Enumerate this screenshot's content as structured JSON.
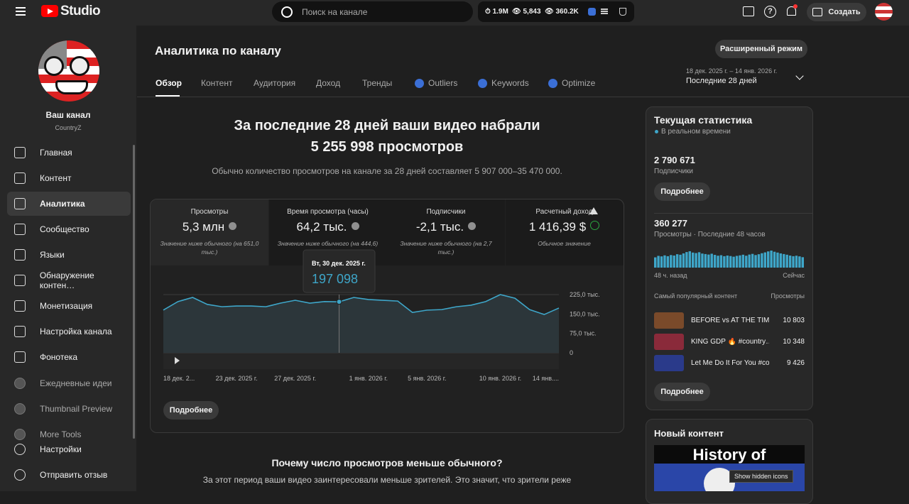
{
  "topbar": {
    "logo": "Studio",
    "search_placeholder": "Поиск на канале",
    "stats": [
      "1.9M",
      "5,843",
      "360.2K"
    ],
    "create": "Создать"
  },
  "sidebar": {
    "channel_name": "Ваш канал",
    "channel_handle": "CountryZ",
    "nav": [
      "Главная",
      "Контент",
      "Аналитика",
      "Сообщество",
      "Языки",
      "Обнаружение контен…",
      "Монетизация",
      "Настройка канала",
      "Фонотека",
      "Ежедневные идеи",
      "Thumbnail Preview",
      "More Tools"
    ],
    "bottom": [
      "Настройки",
      "Отправить отзыв"
    ]
  },
  "header": {
    "title": "Аналитика по каналу",
    "tabs": [
      "Обзор",
      "Контент",
      "Аудитория",
      "Доход",
      "Тренды",
      "Outliers",
      "Keywords",
      "Optimize"
    ],
    "advanced": "Расширенный режим",
    "date_range": "18 дек. 2025 г. – 14 янв. 2026 г.",
    "period": "Последние 28 дней"
  },
  "summary": {
    "headline": [
      "За последние 28 дней ваши видео набрали",
      "5 255 998 просмотров"
    ],
    "subtitle": "Обычно количество просмотров на канале за 28 дней составляет 5 907 000–35 470 000."
  },
  "metrics": [
    {
      "label": "Просмотры",
      "value": "5,3 млн",
      "note": "Значение ниже обычного (на 651,0 тыс.)"
    },
    {
      "label": "Время просмотра (часы)",
      "value": "64,2 тыс.",
      "note": "Значение ниже обычного (на 444,6)"
    },
    {
      "label": "Подписчики",
      "value": "-2,1 тыс.",
      "note": "Значение ниже обычного (на 2,7 тыс.)"
    },
    {
      "label": "Расчетный доход",
      "value": "1 416,39 $",
      "note": "Обычное значение"
    }
  ],
  "chart_data": {
    "type": "line",
    "categories": [
      "18 дек. 2...",
      null,
      null,
      null,
      null,
      "23 дек. 2025 г.",
      null,
      null,
      null,
      "27 дек. 2025 г.",
      null,
      null,
      null,
      null,
      "1 янв. 2026 г.",
      null,
      null,
      null,
      "5 янв. 2026 г.",
      null,
      null,
      null,
      null,
      "10 янв. 2026 г.",
      null,
      null,
      null,
      "14 янв...."
    ],
    "values": [
      165000,
      198000,
      214000,
      187000,
      178000,
      181000,
      181000,
      178000,
      192000,
      203000,
      192000,
      198000,
      197098,
      214000,
      206000,
      203000,
      200000,
      156000,
      165000,
      167000,
      178000,
      184000,
      198000,
      225000,
      211000,
      167000,
      148000,
      173000
    ],
    "color": "#3ea6c9",
    "ylim": [
      0,
      225000
    ],
    "yticks": [
      0,
      {
        "value": 75000,
        "label": "75,0 тыс."
      },
      {
        "value": 150000,
        "label": "150,0 тыс."
      },
      {
        "value": 225000,
        "label": "225,0 тыс."
      }
    ],
    "grid": true,
    "tooltip": {
      "index": 12,
      "title": "Вт, 30 дек. 2025 г.",
      "label": "197 098"
    }
  },
  "details_button": "Подробнее",
  "reason": {
    "title": "Почему число просмотров меньше обычного?",
    "text": "За этот период ваши видео заинтересовали меньше зрителей. Это значит, что зрители реже"
  },
  "realtime": {
    "title": "Текущая статистика",
    "live": "В реальном времени",
    "subscribers": "2 790 671",
    "subscribers_label": "Подписчики",
    "button": "Подробнее",
    "views": "360 277",
    "views_label": "Просмотры · Последние 48 часов",
    "hourly_views": [
      6200,
      7100,
      6800,
      7400,
      6900,
      7600,
      7300,
      8100,
      7800,
      8600,
      9400,
      9900,
      9100,
      8800,
      9300,
      8500,
      8200,
      7900,
      8400,
      7700,
      7200,
      7500,
      6900,
      7300,
      7000,
      6600,
      7100,
      7400,
      7800,
      7200,
      7900,
      8300,
      7600,
      8100,
      8700,
      9200,
      9800,
      10300,
      9600,
      9100,
      8600,
      8200,
      7800,
      7300,
      6900,
      7200,
      6800,
      6300
    ],
    "hourly_color": "#3ea6c9",
    "axis_start": "48 ч. назад",
    "axis_end": "Сейчас",
    "top_header": "Самый популярный контент",
    "top_views_header": "Просмотры",
    "top": [
      {
        "title": "BEFORE vs AT THE TIM…",
        "views": "10 803"
      },
      {
        "title": "KING GDP 🔥 #country…",
        "views": "10 348"
      },
      {
        "title": "Let Me Do It For You #co…",
        "views": "9 426"
      }
    ],
    "button2": "Подробнее"
  },
  "new_content": {
    "title": "Новый контент",
    "thumb_text": "History of"
  },
  "os_tooltip": "Show hidden icons"
}
